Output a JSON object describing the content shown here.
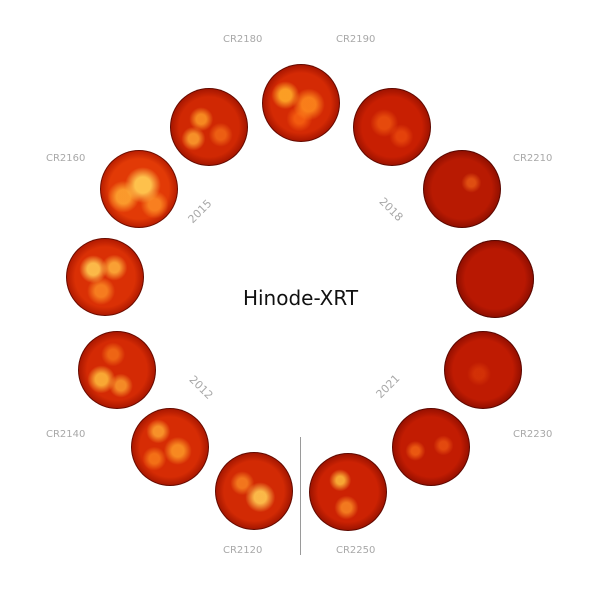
{
  "title": "Hinode-XRT",
  "colors": {
    "disk_base": "#c41a00",
    "disk_dark": "#8a0a00",
    "disk_bright": "#ff8a1a",
    "label_gray": "#a8a8a8",
    "divider_gray": "#9a9a9a"
  },
  "cr_labels": [
    "CR2120",
    "CR2140",
    "CR2160",
    "CR2180",
    "CR2190",
    "CR2210",
    "CR2230",
    "CR2250"
  ],
  "year_labels": [
    "2012",
    "2015",
    "2018",
    "2021"
  ],
  "disk_count": 12
}
